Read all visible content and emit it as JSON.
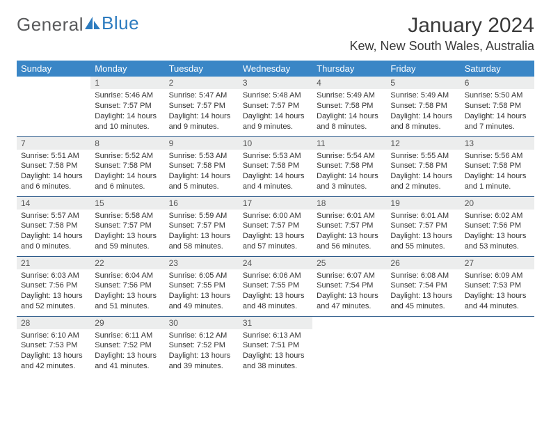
{
  "header": {
    "logo_part1": "General",
    "logo_part2": "Blue",
    "month_title": "January 2024",
    "location": "Kew, New South Wales, Australia"
  },
  "colors": {
    "header_bg": "#3a86c6",
    "daynum_bg": "#eceded",
    "row_border": "#2c5a8a",
    "logo_gray": "#595a5c",
    "logo_blue": "#2c7bbf"
  },
  "weekdays": [
    "Sunday",
    "Monday",
    "Tuesday",
    "Wednesday",
    "Thursday",
    "Friday",
    "Saturday"
  ],
  "weeks": [
    [
      {
        "day": "",
        "sunrise": "",
        "sunset": "",
        "daylight1": "",
        "daylight2": ""
      },
      {
        "day": "1",
        "sunrise": "Sunrise: 5:46 AM",
        "sunset": "Sunset: 7:57 PM",
        "daylight1": "Daylight: 14 hours",
        "daylight2": "and 10 minutes."
      },
      {
        "day": "2",
        "sunrise": "Sunrise: 5:47 AM",
        "sunset": "Sunset: 7:57 PM",
        "daylight1": "Daylight: 14 hours",
        "daylight2": "and 9 minutes."
      },
      {
        "day": "3",
        "sunrise": "Sunrise: 5:48 AM",
        "sunset": "Sunset: 7:57 PM",
        "daylight1": "Daylight: 14 hours",
        "daylight2": "and 9 minutes."
      },
      {
        "day": "4",
        "sunrise": "Sunrise: 5:49 AM",
        "sunset": "Sunset: 7:58 PM",
        "daylight1": "Daylight: 14 hours",
        "daylight2": "and 8 minutes."
      },
      {
        "day": "5",
        "sunrise": "Sunrise: 5:49 AM",
        "sunset": "Sunset: 7:58 PM",
        "daylight1": "Daylight: 14 hours",
        "daylight2": "and 8 minutes."
      },
      {
        "day": "6",
        "sunrise": "Sunrise: 5:50 AM",
        "sunset": "Sunset: 7:58 PM",
        "daylight1": "Daylight: 14 hours",
        "daylight2": "and 7 minutes."
      }
    ],
    [
      {
        "day": "7",
        "sunrise": "Sunrise: 5:51 AM",
        "sunset": "Sunset: 7:58 PM",
        "daylight1": "Daylight: 14 hours",
        "daylight2": "and 6 minutes."
      },
      {
        "day": "8",
        "sunrise": "Sunrise: 5:52 AM",
        "sunset": "Sunset: 7:58 PM",
        "daylight1": "Daylight: 14 hours",
        "daylight2": "and 6 minutes."
      },
      {
        "day": "9",
        "sunrise": "Sunrise: 5:53 AM",
        "sunset": "Sunset: 7:58 PM",
        "daylight1": "Daylight: 14 hours",
        "daylight2": "and 5 minutes."
      },
      {
        "day": "10",
        "sunrise": "Sunrise: 5:53 AM",
        "sunset": "Sunset: 7:58 PM",
        "daylight1": "Daylight: 14 hours",
        "daylight2": "and 4 minutes."
      },
      {
        "day": "11",
        "sunrise": "Sunrise: 5:54 AM",
        "sunset": "Sunset: 7:58 PM",
        "daylight1": "Daylight: 14 hours",
        "daylight2": "and 3 minutes."
      },
      {
        "day": "12",
        "sunrise": "Sunrise: 5:55 AM",
        "sunset": "Sunset: 7:58 PM",
        "daylight1": "Daylight: 14 hours",
        "daylight2": "and 2 minutes."
      },
      {
        "day": "13",
        "sunrise": "Sunrise: 5:56 AM",
        "sunset": "Sunset: 7:58 PM",
        "daylight1": "Daylight: 14 hours",
        "daylight2": "and 1 minute."
      }
    ],
    [
      {
        "day": "14",
        "sunrise": "Sunrise: 5:57 AM",
        "sunset": "Sunset: 7:58 PM",
        "daylight1": "Daylight: 14 hours",
        "daylight2": "and 0 minutes."
      },
      {
        "day": "15",
        "sunrise": "Sunrise: 5:58 AM",
        "sunset": "Sunset: 7:57 PM",
        "daylight1": "Daylight: 13 hours",
        "daylight2": "and 59 minutes."
      },
      {
        "day": "16",
        "sunrise": "Sunrise: 5:59 AM",
        "sunset": "Sunset: 7:57 PM",
        "daylight1": "Daylight: 13 hours",
        "daylight2": "and 58 minutes."
      },
      {
        "day": "17",
        "sunrise": "Sunrise: 6:00 AM",
        "sunset": "Sunset: 7:57 PM",
        "daylight1": "Daylight: 13 hours",
        "daylight2": "and 57 minutes."
      },
      {
        "day": "18",
        "sunrise": "Sunrise: 6:01 AM",
        "sunset": "Sunset: 7:57 PM",
        "daylight1": "Daylight: 13 hours",
        "daylight2": "and 56 minutes."
      },
      {
        "day": "19",
        "sunrise": "Sunrise: 6:01 AM",
        "sunset": "Sunset: 7:57 PM",
        "daylight1": "Daylight: 13 hours",
        "daylight2": "and 55 minutes."
      },
      {
        "day": "20",
        "sunrise": "Sunrise: 6:02 AM",
        "sunset": "Sunset: 7:56 PM",
        "daylight1": "Daylight: 13 hours",
        "daylight2": "and 53 minutes."
      }
    ],
    [
      {
        "day": "21",
        "sunrise": "Sunrise: 6:03 AM",
        "sunset": "Sunset: 7:56 PM",
        "daylight1": "Daylight: 13 hours",
        "daylight2": "and 52 minutes."
      },
      {
        "day": "22",
        "sunrise": "Sunrise: 6:04 AM",
        "sunset": "Sunset: 7:56 PM",
        "daylight1": "Daylight: 13 hours",
        "daylight2": "and 51 minutes."
      },
      {
        "day": "23",
        "sunrise": "Sunrise: 6:05 AM",
        "sunset": "Sunset: 7:55 PM",
        "daylight1": "Daylight: 13 hours",
        "daylight2": "and 49 minutes."
      },
      {
        "day": "24",
        "sunrise": "Sunrise: 6:06 AM",
        "sunset": "Sunset: 7:55 PM",
        "daylight1": "Daylight: 13 hours",
        "daylight2": "and 48 minutes."
      },
      {
        "day": "25",
        "sunrise": "Sunrise: 6:07 AM",
        "sunset": "Sunset: 7:54 PM",
        "daylight1": "Daylight: 13 hours",
        "daylight2": "and 47 minutes."
      },
      {
        "day": "26",
        "sunrise": "Sunrise: 6:08 AM",
        "sunset": "Sunset: 7:54 PM",
        "daylight1": "Daylight: 13 hours",
        "daylight2": "and 45 minutes."
      },
      {
        "day": "27",
        "sunrise": "Sunrise: 6:09 AM",
        "sunset": "Sunset: 7:53 PM",
        "daylight1": "Daylight: 13 hours",
        "daylight2": "and 44 minutes."
      }
    ],
    [
      {
        "day": "28",
        "sunrise": "Sunrise: 6:10 AM",
        "sunset": "Sunset: 7:53 PM",
        "daylight1": "Daylight: 13 hours",
        "daylight2": "and 42 minutes."
      },
      {
        "day": "29",
        "sunrise": "Sunrise: 6:11 AM",
        "sunset": "Sunset: 7:52 PM",
        "daylight1": "Daylight: 13 hours",
        "daylight2": "and 41 minutes."
      },
      {
        "day": "30",
        "sunrise": "Sunrise: 6:12 AM",
        "sunset": "Sunset: 7:52 PM",
        "daylight1": "Daylight: 13 hours",
        "daylight2": "and 39 minutes."
      },
      {
        "day": "31",
        "sunrise": "Sunrise: 6:13 AM",
        "sunset": "Sunset: 7:51 PM",
        "daylight1": "Daylight: 13 hours",
        "daylight2": "and 38 minutes."
      },
      {
        "day": "",
        "sunrise": "",
        "sunset": "",
        "daylight1": "",
        "daylight2": ""
      },
      {
        "day": "",
        "sunrise": "",
        "sunset": "",
        "daylight1": "",
        "daylight2": ""
      },
      {
        "day": "",
        "sunrise": "",
        "sunset": "",
        "daylight1": "",
        "daylight2": ""
      }
    ]
  ]
}
